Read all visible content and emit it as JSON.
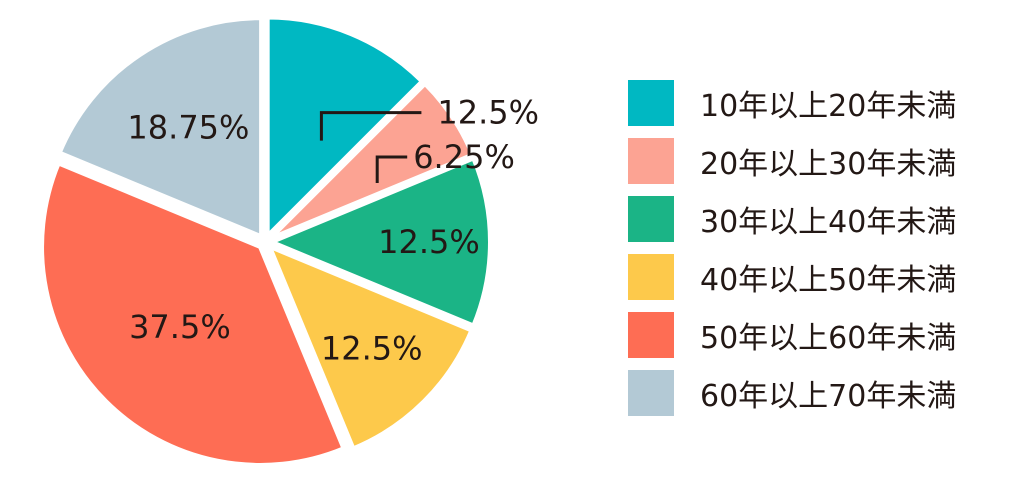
{
  "chart_data": {
    "type": "pie",
    "title": "",
    "categories": [
      "10年以上20年未満",
      "20年以上30年未満",
      "30年以上40年未満",
      "40年以上50年未満",
      "50年以上60年未満",
      "60年以上70年未満"
    ],
    "values": [
      12.5,
      6.25,
      12.5,
      12.5,
      37.5,
      18.75
    ],
    "labels": [
      "12.5%",
      "6.25%",
      "12.5%",
      "12.5%",
      "37.5%",
      "18.75%"
    ],
    "colors": [
      "#00b8c2",
      "#fca393",
      "#1bb486",
      "#fdc94b",
      "#fe6d54",
      "#b3c9d5"
    ],
    "start_angle": "12 o'clock",
    "direction": "clockwise",
    "exploded": true,
    "legend_position": "right"
  },
  "legend": {
    "items": [
      "10年以上20年未満",
      "20年以上30年未満",
      "30年以上40年未満",
      "40年以上50年未満",
      "50年以上60年未満",
      "60年以上70年未満"
    ]
  }
}
